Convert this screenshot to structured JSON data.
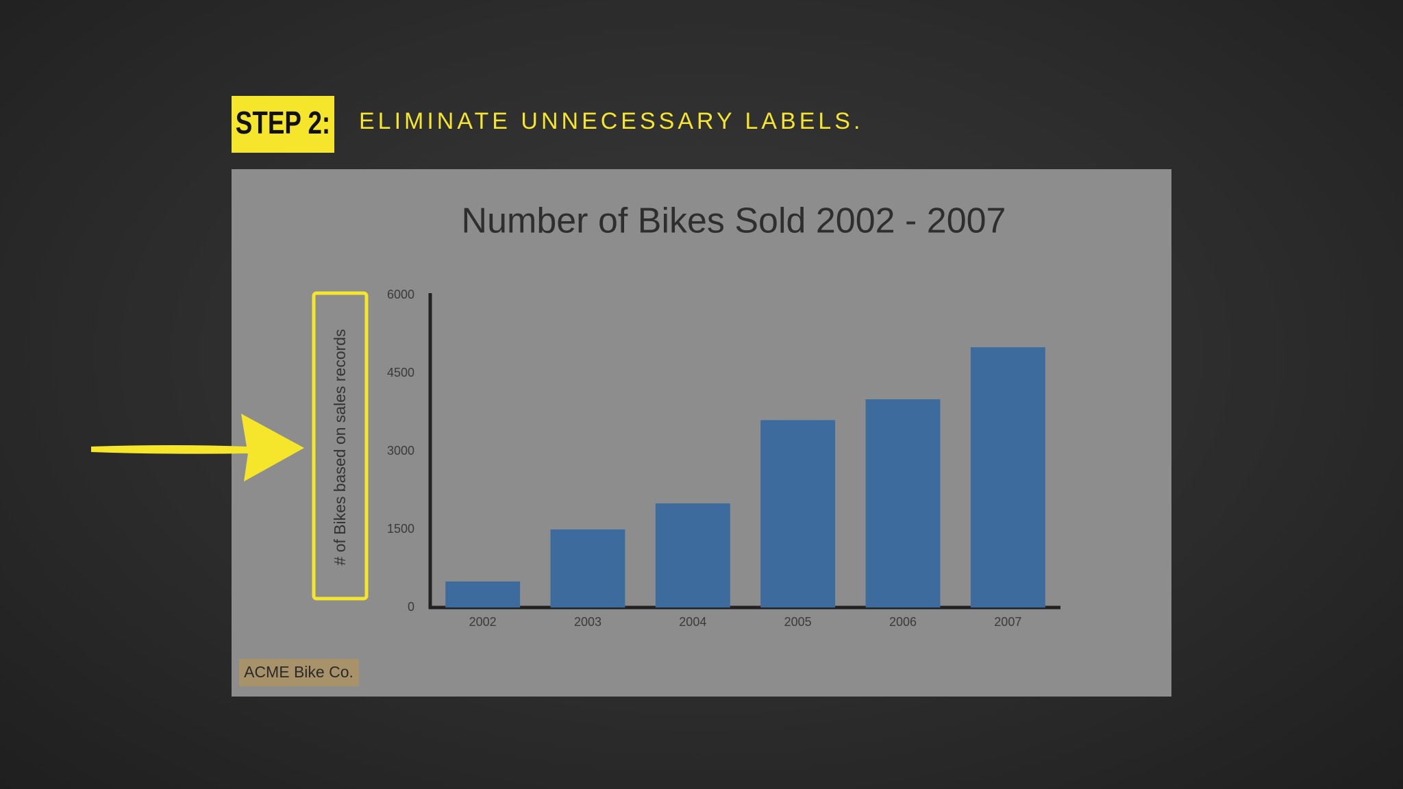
{
  "step": {
    "badge": "STEP 2:",
    "text": "ELIMINATE UNNECESSARY LABELS."
  },
  "chart_data": {
    "type": "bar",
    "title": "Number of Bikes Sold 2002 - 2007",
    "ylabel": "# of Bikes based on sales records",
    "categories": [
      "2002",
      "2003",
      "2004",
      "2005",
      "2006",
      "2007"
    ],
    "values": [
      500,
      1500,
      2000,
      3600,
      4000,
      5000
    ],
    "color": "#3e6b9e",
    "ylim": [
      0,
      6000
    ],
    "yticks": [
      0,
      1500,
      3000,
      4500,
      6000
    ],
    "grid": false,
    "footer": "ACME Bike Co."
  }
}
